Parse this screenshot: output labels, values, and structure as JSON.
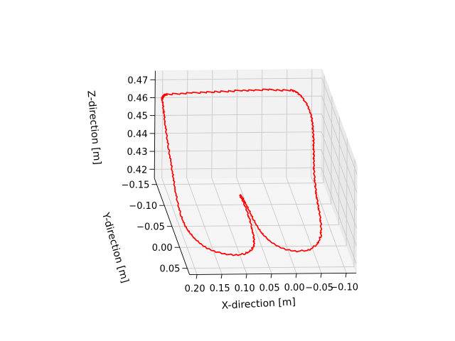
{
  "chart_data": {
    "type": "line3d",
    "title": "",
    "xlabel": "X-direction [m]",
    "ylabel": "Y-direction [m]",
    "zlabel": "Z-direction [m]",
    "x_ticks": [
      "0.20",
      "0.15",
      "0.10",
      "0.05",
      "0.00",
      "−0.05",
      "−0.10"
    ],
    "y_ticks": [
      "−0.15",
      "−0.10",
      "−0.05",
      "0.00",
      "0.05"
    ],
    "z_ticks": [
      "0.47",
      "0.46",
      "0.45",
      "0.44",
      "0.43",
      "0.42"
    ],
    "grid": true,
    "series": [
      {
        "color": "#ff0000",
        "points": [
          [
            0.055,
            -0.118,
            0.416
          ],
          [
            0.052,
            -0.1,
            0.416
          ],
          [
            0.05,
            -0.08,
            0.416
          ],
          [
            0.048,
            -0.06,
            0.416
          ],
          [
            0.045,
            -0.04,
            0.416
          ],
          [
            0.04,
            -0.025,
            0.416
          ],
          [
            0.032,
            -0.01,
            0.416
          ],
          [
            0.02,
            0.003,
            0.416
          ],
          [
            0.005,
            0.012,
            0.416
          ],
          [
            -0.015,
            0.016,
            0.416
          ],
          [
            -0.04,
            0.014,
            0.416
          ],
          [
            -0.062,
            0.0,
            0.416
          ],
          [
            -0.075,
            -0.02,
            0.416
          ],
          [
            -0.083,
            -0.045,
            0.416
          ],
          [
            -0.088,
            -0.07,
            0.416
          ],
          [
            -0.092,
            -0.095,
            0.416
          ],
          [
            -0.095,
            -0.115,
            0.4165
          ],
          [
            -0.097,
            -0.13,
            0.419
          ],
          [
            -0.098,
            -0.14,
            0.423
          ],
          [
            -0.099,
            -0.146,
            0.427
          ],
          [
            -0.1,
            -0.149,
            0.431
          ],
          [
            -0.1,
            -0.151,
            0.435
          ],
          [
            -0.1,
            -0.152,
            0.439
          ],
          [
            -0.099,
            -0.152,
            0.443
          ],
          [
            -0.098,
            -0.152,
            0.447
          ],
          [
            -0.096,
            -0.152,
            0.451
          ],
          [
            -0.092,
            -0.152,
            0.455
          ],
          [
            -0.085,
            -0.152,
            0.459
          ],
          [
            -0.075,
            -0.152,
            0.463
          ],
          [
            -0.065,
            -0.152,
            0.4655
          ],
          [
            -0.055,
            -0.152,
            0.4665
          ],
          [
            -0.03,
            -0.152,
            0.4665
          ],
          [
            -0.005,
            -0.152,
            0.467
          ],
          [
            0.02,
            -0.152,
            0.4665
          ],
          [
            0.045,
            -0.152,
            0.4667
          ],
          [
            0.07,
            -0.152,
            0.4662
          ],
          [
            0.095,
            -0.152,
            0.466
          ],
          [
            0.12,
            -0.152,
            0.4657
          ],
          [
            0.145,
            -0.152,
            0.4655
          ],
          [
            0.17,
            -0.152,
            0.4652
          ],
          [
            0.195,
            -0.152,
            0.4648
          ],
          [
            0.2,
            -0.152,
            0.4645
          ],
          [
            0.203,
            -0.152,
            0.4635
          ],
          [
            0.205,
            -0.152,
            0.4625
          ],
          [
            0.204,
            -0.15,
            0.46
          ],
          [
            0.203,
            -0.145,
            0.456
          ],
          [
            0.203,
            -0.138,
            0.452
          ],
          [
            0.202,
            -0.13,
            0.447
          ],
          [
            0.201,
            -0.12,
            0.442
          ],
          [
            0.2,
            -0.108,
            0.437
          ],
          [
            0.199,
            -0.096,
            0.432
          ],
          [
            0.198,
            -0.085,
            0.427
          ],
          [
            0.196,
            -0.075,
            0.422
          ],
          [
            0.193,
            -0.062,
            0.418
          ],
          [
            0.19,
            -0.048,
            0.416
          ],
          [
            0.186,
            -0.032,
            0.416
          ],
          [
            0.18,
            -0.017,
            0.416
          ],
          [
            0.172,
            -0.004,
            0.416
          ],
          [
            0.162,
            0.007,
            0.416
          ],
          [
            0.148,
            0.015,
            0.416
          ],
          [
            0.13,
            0.021,
            0.416
          ],
          [
            0.11,
            0.024,
            0.416
          ],
          [
            0.09,
            0.021,
            0.416
          ],
          [
            0.075,
            0.013,
            0.416
          ],
          [
            0.066,
            0.001,
            0.416
          ],
          [
            0.061,
            -0.015,
            0.416
          ],
          [
            0.058,
            -0.035,
            0.416
          ],
          [
            0.056,
            -0.06,
            0.416
          ],
          [
            0.055,
            -0.085,
            0.416
          ],
          [
            0.056,
            -0.105,
            0.416
          ],
          [
            0.058,
            -0.118,
            0.416
          ]
        ]
      }
    ]
  }
}
